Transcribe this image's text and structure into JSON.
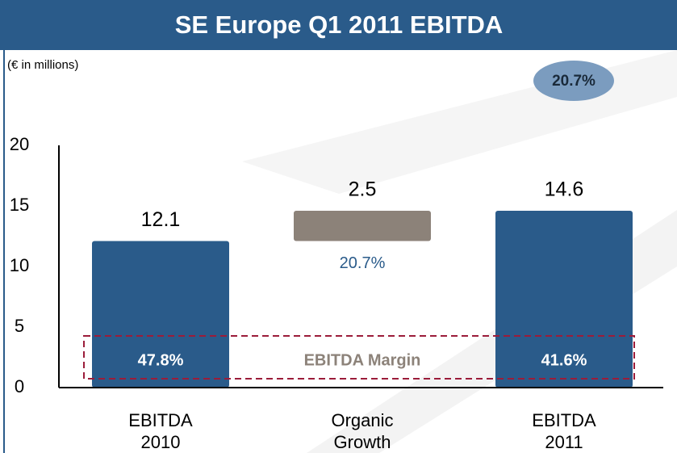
{
  "chart_data": {
    "type": "waterfall",
    "title": "SE Europe Q1 2011 EBITDA",
    "subtitle": "(€ in millions)",
    "badge": "20.7%",
    "categories": [
      "EBITDA 2010",
      "Organic Growth",
      "EBITDA 2011"
    ],
    "values": [
      12.1,
      2.5,
      14.6
    ],
    "measures": [
      "total",
      "relative",
      "total"
    ],
    "colors": [
      "#2a5b8a",
      "#8c8279",
      "#2a5b8a"
    ],
    "growth": 20.7,
    "growth_label": "20.7%",
    "margin_title": "EBITDA Margin",
    "margins": [
      47.8,
      null,
      41.6
    ],
    "margin_labels": [
      "47.8%",
      null,
      "41.6%"
    ],
    "ylim": [
      0,
      20
    ],
    "yticks": [
      0,
      5,
      10,
      15,
      20
    ]
  }
}
